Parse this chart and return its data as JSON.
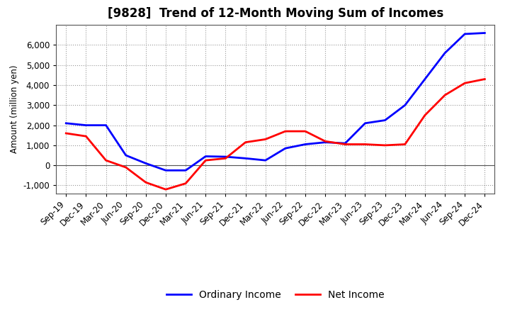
{
  "title": "[9828]  Trend of 12-Month Moving Sum of Incomes",
  "ylabel": "Amount (million yen)",
  "x_labels": [
    "Sep-19",
    "Dec-19",
    "Mar-20",
    "Jun-20",
    "Sep-20",
    "Dec-20",
    "Mar-21",
    "Jun-21",
    "Sep-21",
    "Dec-21",
    "Mar-22",
    "Jun-22",
    "Sep-22",
    "Dec-22",
    "Mar-23",
    "Jun-23",
    "Sep-23",
    "Dec-23",
    "Mar-24",
    "Jun-24",
    "Sep-24",
    "Dec-24"
  ],
  "ordinary_income": [
    2100,
    2000,
    2000,
    500,
    100,
    -250,
    -250,
    450,
    430,
    350,
    250,
    850,
    1050,
    1150,
    1100,
    2100,
    2250,
    3000,
    4300,
    5600,
    6550,
    6600
  ],
  "net_income": [
    1600,
    1450,
    250,
    -100,
    -850,
    -1200,
    -900,
    250,
    350,
    1150,
    1300,
    1700,
    1700,
    1200,
    1050,
    1050,
    1000,
    1050,
    2500,
    3500,
    4100,
    4300
  ],
  "ordinary_income_color": "#0000ff",
  "net_income_color": "#ff0000",
  "ylim": [
    -1400,
    7000
  ],
  "yticks": [
    -1000,
    0,
    1000,
    2000,
    3000,
    4000,
    5000,
    6000
  ],
  "background_color": "#ffffff",
  "plot_bg_color": "#ffffff",
  "grid_color": "#999999",
  "line_width": 2.0,
  "title_fontsize": 12,
  "legend_fontsize": 10,
  "axis_fontsize": 8.5,
  "zero_line_color": "#555555"
}
